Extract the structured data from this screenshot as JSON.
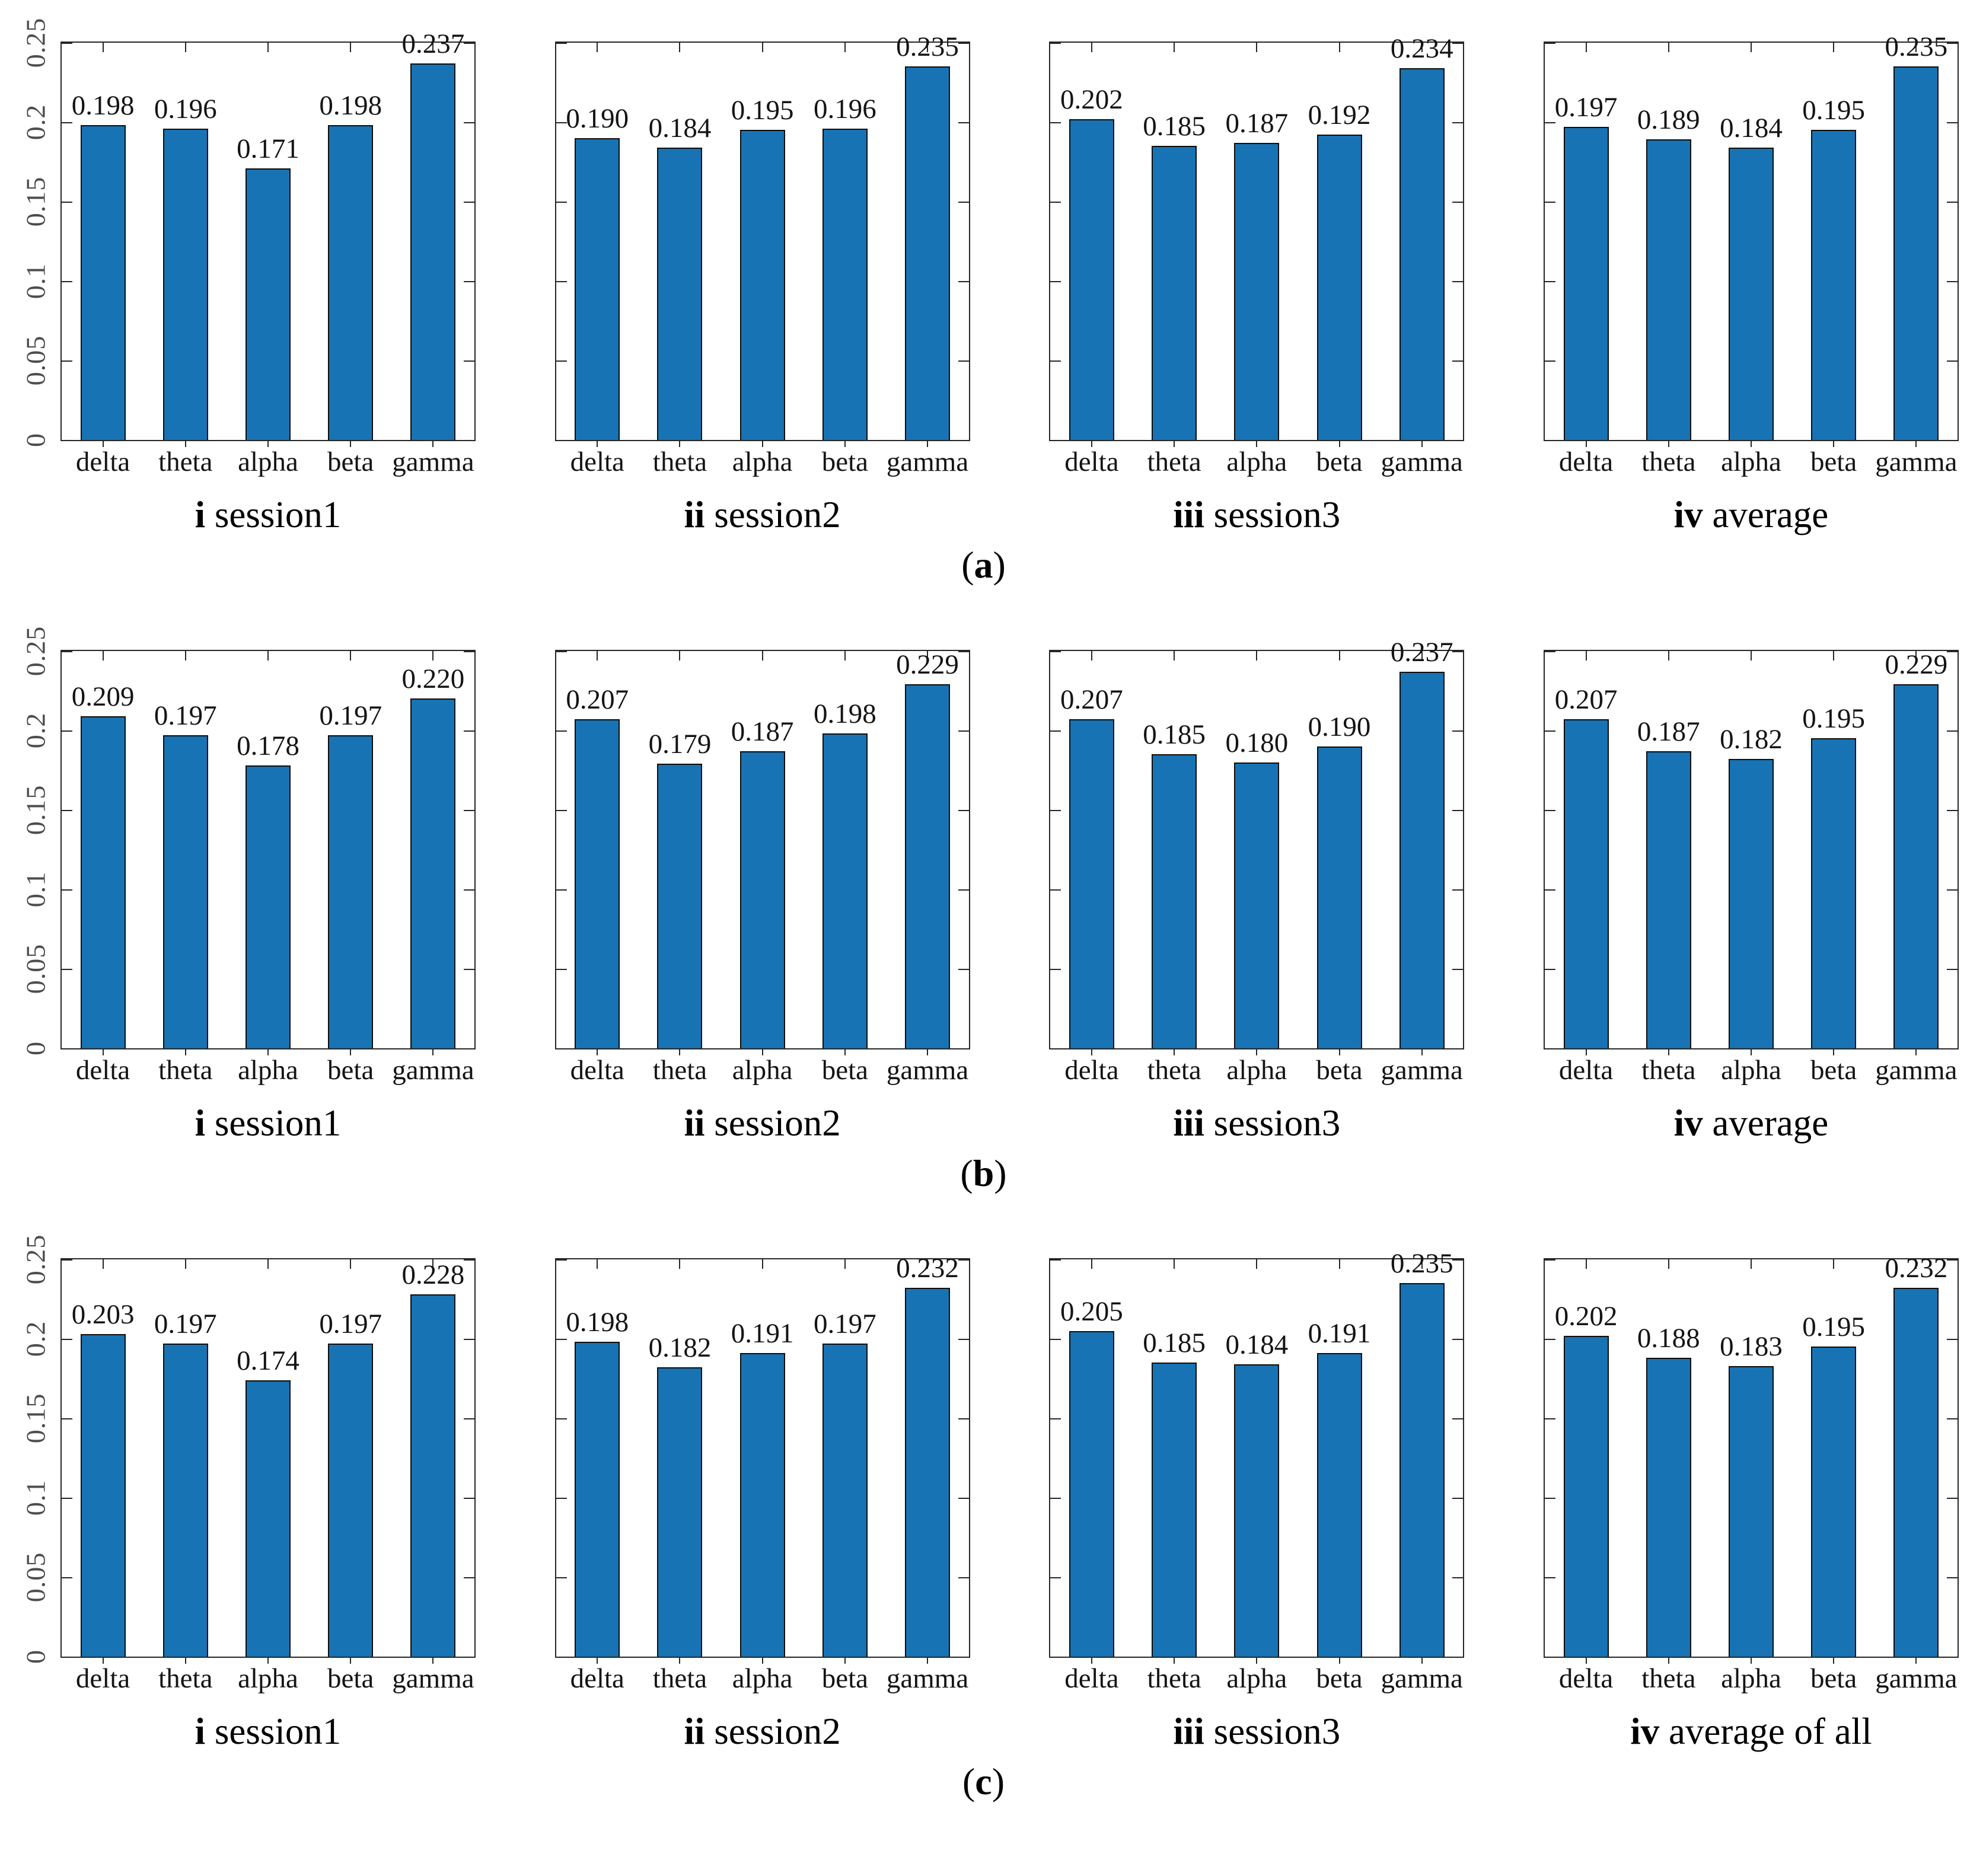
{
  "figure": {
    "paren_open": "(",
    "paren_close": ")",
    "background": "#ffffff"
  },
  "style": {
    "bar_color": "#1873b4",
    "bar_edge_color": "#0d0d0d",
    "axis_color": "#262626",
    "ytick_label_color": "#4d4d4d",
    "value_label_color": "#141414"
  },
  "chart_data": [
    {
      "group_letter": "a",
      "type": "bar",
      "ylim": [
        0,
        0.25
      ],
      "ytick_values": [
        0,
        0.05,
        0.1,
        0.15,
        0.2,
        0.25
      ],
      "ytick_labels": [
        "0",
        "0.05",
        "0.1",
        "0.15",
        "0.2",
        "0.25"
      ],
      "categories": [
        "delta",
        "theta",
        "alpha",
        "beta",
        "gamma"
      ],
      "subplots": [
        {
          "caption_roman": "i",
          "caption_text": "session1",
          "values": [
            0.198,
            0.196,
            0.171,
            0.198,
            0.237
          ]
        },
        {
          "caption_roman": "ii",
          "caption_text": "session2",
          "values": [
            0.19,
            0.184,
            0.195,
            0.196,
            0.235
          ]
        },
        {
          "caption_roman": "iii",
          "caption_text": "session3",
          "values": [
            0.202,
            0.185,
            0.187,
            0.192,
            0.234
          ]
        },
        {
          "caption_roman": "iv",
          "caption_text": "average",
          "values": [
            0.197,
            0.189,
            0.184,
            0.195,
            0.235
          ]
        }
      ]
    },
    {
      "group_letter": "b",
      "type": "bar",
      "ylim": [
        0,
        0.25
      ],
      "ytick_values": [
        0,
        0.05,
        0.1,
        0.15,
        0.2,
        0.25
      ],
      "ytick_labels": [
        "0",
        "0.05",
        "0.1",
        "0.15",
        "0.2",
        "0.25"
      ],
      "categories": [
        "delta",
        "theta",
        "alpha",
        "beta",
        "gamma"
      ],
      "subplots": [
        {
          "caption_roman": "i",
          "caption_text": "session1",
          "values": [
            0.209,
            0.197,
            0.178,
            0.197,
            0.22
          ]
        },
        {
          "caption_roman": "ii",
          "caption_text": "session2",
          "values": [
            0.207,
            0.179,
            0.187,
            0.198,
            0.229
          ]
        },
        {
          "caption_roman": "iii",
          "caption_text": "session3",
          "values": [
            0.207,
            0.185,
            0.18,
            0.19,
            0.237
          ]
        },
        {
          "caption_roman": "iv",
          "caption_text": "average",
          "values": [
            0.207,
            0.187,
            0.182,
            0.195,
            0.229
          ]
        }
      ]
    },
    {
      "group_letter": "c",
      "type": "bar",
      "ylim": [
        0,
        0.25
      ],
      "ytick_values": [
        0,
        0.05,
        0.1,
        0.15,
        0.2,
        0.25
      ],
      "ytick_labels": [
        "0",
        "0.05",
        "0.1",
        "0.15",
        "0.2",
        "0.25"
      ],
      "categories": [
        "delta",
        "theta",
        "alpha",
        "beta",
        "gamma"
      ],
      "subplots": [
        {
          "caption_roman": "i",
          "caption_text": "session1",
          "values": [
            0.203,
            0.197,
            0.174,
            0.197,
            0.228
          ]
        },
        {
          "caption_roman": "ii",
          "caption_text": "session2",
          "values": [
            0.198,
            0.182,
            0.191,
            0.197,
            0.232
          ]
        },
        {
          "caption_roman": "iii",
          "caption_text": "session3",
          "values": [
            0.205,
            0.185,
            0.184,
            0.191,
            0.235
          ]
        },
        {
          "caption_roman": "iv",
          "caption_text": "average of all",
          "values": [
            0.202,
            0.188,
            0.183,
            0.195,
            0.232
          ]
        }
      ]
    }
  ]
}
